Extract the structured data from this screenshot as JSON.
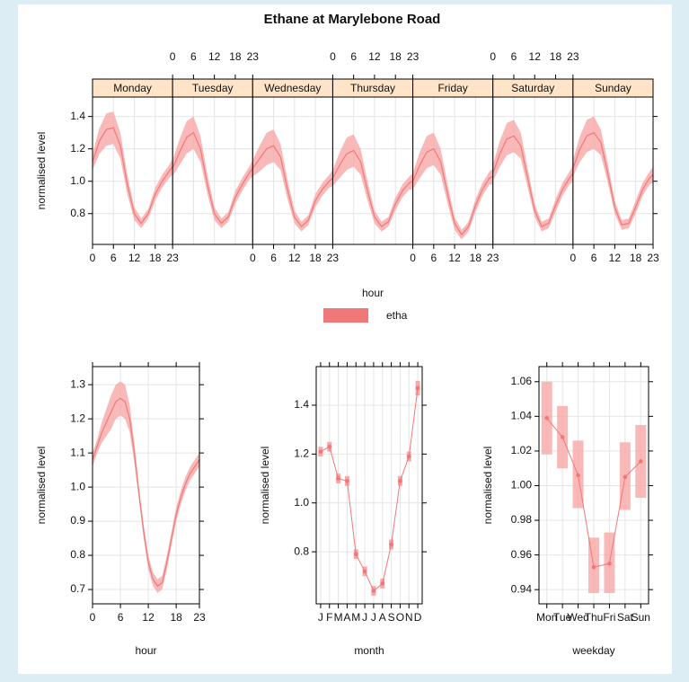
{
  "chart_data": [
    {
      "type": "line",
      "title": "Ethane at Marylebone Road",
      "xlabel": "hour",
      "ylabel": "normalised level",
      "series_name": "etha",
      "color": "#f07878",
      "band_color": "#f7a8a8",
      "xlim": [
        0,
        23
      ],
      "xticks": [
        0,
        6,
        12,
        18,
        23
      ],
      "ylim": [
        0.61,
        1.52
      ],
      "yticks": [
        0.8,
        {
          "value": 1,
          "label": "1.0"
        },
        1.2,
        1.4
      ],
      "grid": true,
      "x": [
        0,
        2,
        4,
        6,
        8,
        10,
        12,
        14,
        16,
        18,
        20,
        22,
        23
      ],
      "panels": [
        {
          "name": "Monday",
          "values": [
            1.12,
            1.25,
            1.32,
            1.33,
            1.22,
            0.98,
            0.8,
            0.74,
            0.8,
            0.92,
            1.0,
            1.06,
            1.09
          ],
          "lower": [
            1.07,
            1.17,
            1.22,
            1.23,
            1.14,
            0.92,
            0.76,
            0.71,
            0.77,
            0.88,
            0.96,
            1.02,
            1.04
          ],
          "upper": [
            1.17,
            1.33,
            1.42,
            1.43,
            1.3,
            1.04,
            0.84,
            0.77,
            0.83,
            0.96,
            1.04,
            1.1,
            1.14
          ]
        },
        {
          "name": "Tuesday",
          "values": [
            1.08,
            1.18,
            1.27,
            1.3,
            1.2,
            0.98,
            0.8,
            0.74,
            0.78,
            0.9,
            0.98,
            1.05,
            1.08
          ],
          "lower": [
            1.03,
            1.1,
            1.17,
            1.2,
            1.12,
            0.92,
            0.76,
            0.71,
            0.75,
            0.86,
            0.94,
            1.01,
            1.03
          ],
          "upper": [
            1.13,
            1.26,
            1.37,
            1.4,
            1.28,
            1.04,
            0.84,
            0.77,
            0.81,
            0.94,
            1.02,
            1.09,
            1.13
          ]
        },
        {
          "name": "Wednesday",
          "values": [
            1.08,
            1.14,
            1.2,
            1.22,
            1.15,
            0.95,
            0.78,
            0.72,
            0.76,
            0.88,
            0.95,
            1.0,
            1.02
          ],
          "lower": [
            1.03,
            1.06,
            1.1,
            1.12,
            1.07,
            0.89,
            0.74,
            0.69,
            0.73,
            0.84,
            0.91,
            0.96,
            0.97
          ],
          "upper": [
            1.13,
            1.22,
            1.3,
            1.32,
            1.23,
            1.01,
            0.82,
            0.75,
            0.79,
            0.92,
            0.99,
            1.04,
            1.07
          ]
        },
        {
          "name": "Thursday",
          "values": [
            1.02,
            1.1,
            1.17,
            1.19,
            1.12,
            0.94,
            0.78,
            0.72,
            0.75,
            0.86,
            0.94,
            0.99,
            1.0
          ],
          "lower": [
            0.97,
            1.02,
            1.07,
            1.09,
            1.04,
            0.88,
            0.74,
            0.69,
            0.72,
            0.82,
            0.9,
            0.95,
            0.95
          ],
          "upper": [
            1.07,
            1.18,
            1.27,
            1.29,
            1.2,
            1.0,
            0.82,
            0.75,
            0.78,
            0.9,
            0.98,
            1.03,
            1.05
          ]
        },
        {
          "name": "Friday",
          "values": [
            1.0,
            1.1,
            1.18,
            1.2,
            1.12,
            0.92,
            0.74,
            0.67,
            0.72,
            0.85,
            0.95,
            1.02,
            1.03
          ],
          "lower": [
            0.95,
            1.02,
            1.08,
            1.1,
            1.04,
            0.86,
            0.7,
            0.64,
            0.69,
            0.81,
            0.91,
            0.98,
            0.98
          ],
          "upper": [
            1.05,
            1.18,
            1.28,
            1.3,
            1.2,
            0.98,
            0.78,
            0.7,
            0.75,
            0.89,
            0.99,
            1.06,
            1.08
          ]
        },
        {
          "name": "Saturday",
          "values": [
            1.05,
            1.17,
            1.26,
            1.28,
            1.22,
            1.02,
            0.82,
            0.72,
            0.74,
            0.85,
            0.95,
            1.02,
            1.05
          ],
          "lower": [
            1.0,
            1.09,
            1.16,
            1.18,
            1.14,
            0.96,
            0.78,
            0.69,
            0.71,
            0.81,
            0.91,
            0.98,
            1.0
          ],
          "upper": [
            1.1,
            1.25,
            1.36,
            1.38,
            1.3,
            1.08,
            0.86,
            0.75,
            0.77,
            0.89,
            0.99,
            1.06,
            1.1
          ]
        },
        {
          "name": "Sunday",
          "values": [
            1.08,
            1.2,
            1.28,
            1.3,
            1.24,
            1.05,
            0.84,
            0.73,
            0.74,
            0.84,
            0.95,
            1.02,
            1.04
          ],
          "lower": [
            1.03,
            1.12,
            1.18,
            1.2,
            1.16,
            0.99,
            0.8,
            0.7,
            0.71,
            0.8,
            0.91,
            0.98,
            0.99
          ],
          "upper": [
            1.13,
            1.28,
            1.38,
            1.4,
            1.32,
            1.11,
            0.88,
            0.76,
            0.77,
            0.88,
            0.99,
            1.06,
            1.09
          ]
        }
      ]
    },
    {
      "type": "line",
      "xlabel": "hour",
      "ylabel": "normalised level",
      "color": "#f07878",
      "band_color": "#f7a8a8",
      "xlim": [
        0,
        23
      ],
      "xticks": [
        0,
        6,
        12,
        18,
        23
      ],
      "ylim": [
        0.658,
        1.353
      ],
      "yticks": [
        0.7,
        0.8,
        0.9,
        {
          "value": 1,
          "label": "1.0"
        },
        1.1,
        1.2,
        1.3
      ],
      "grid": true,
      "x": [
        0,
        1,
        2,
        3,
        4,
        5,
        6,
        7,
        8,
        9,
        10,
        11,
        12,
        13,
        14,
        15,
        16,
        17,
        18,
        19,
        20,
        21,
        22,
        23
      ],
      "values": [
        1.08,
        1.12,
        1.16,
        1.19,
        1.22,
        1.25,
        1.26,
        1.25,
        1.2,
        1.1,
        0.98,
        0.87,
        0.78,
        0.73,
        0.71,
        0.72,
        0.78,
        0.85,
        0.92,
        0.97,
        1.01,
        1.04,
        1.06,
        1.08
      ],
      "lower": [
        1.06,
        1.1,
        1.13,
        1.15,
        1.17,
        1.2,
        1.21,
        1.2,
        1.16,
        1.07,
        0.96,
        0.85,
        0.76,
        0.71,
        0.69,
        0.7,
        0.76,
        0.83,
        0.9,
        0.95,
        0.99,
        1.02,
        1.04,
        1.06
      ],
      "upper": [
        1.1,
        1.14,
        1.19,
        1.23,
        1.27,
        1.3,
        1.31,
        1.3,
        1.24,
        1.13,
        1.0,
        0.89,
        0.8,
        0.75,
        0.73,
        0.74,
        0.8,
        0.87,
        0.94,
        0.99,
        1.03,
        1.06,
        1.08,
        1.1
      ]
    },
    {
      "type": "errorline",
      "xlabel": "month",
      "ylabel": "normalised level",
      "color": "#f07878",
      "band_color": "#f7a8a8",
      "categories": [
        "J",
        "F",
        "M",
        "A",
        "M",
        "J",
        "J",
        "A",
        "S",
        "O",
        "N",
        "D"
      ],
      "ylim": [
        0.587,
        1.558
      ],
      "yticks": [
        0.8,
        {
          "value": 1,
          "label": "1.0"
        },
        1.2,
        1.4
      ],
      "grid": true,
      "values": [
        1.21,
        1.23,
        1.1,
        1.09,
        0.79,
        0.72,
        0.64,
        0.67,
        0.83,
        1.09,
        1.19,
        1.47
      ],
      "lower": [
        1.19,
        1.21,
        1.08,
        1.07,
        0.77,
        0.7,
        0.62,
        0.65,
        0.81,
        1.07,
        1.17,
        1.44
      ],
      "upper": [
        1.23,
        1.25,
        1.12,
        1.11,
        0.81,
        0.74,
        0.66,
        0.69,
        0.85,
        1.11,
        1.21,
        1.5
      ]
    },
    {
      "type": "errorbar",
      "xlabel": "weekday",
      "ylabel": "normalised level",
      "color": "#f07878",
      "band_color": "#f7a8a8",
      "categories": [
        "Mon",
        "Tue",
        "Wed",
        "Thu",
        "Fri",
        "Sat",
        "Sun"
      ],
      "ylim": [
        0.9318,
        1.0687
      ],
      "yticks": [
        0.94,
        0.96,
        0.98,
        {
          "value": 1,
          "label": "1.00"
        },
        1.02,
        1.04,
        1.06
      ],
      "grid": true,
      "values": [
        1.039,
        1.028,
        1.006,
        0.953,
        0.955,
        1.005,
        1.014
      ],
      "lower": [
        1.018,
        1.01,
        0.987,
        0.938,
        0.938,
        0.986,
        0.993
      ],
      "upper": [
        1.06,
        1.046,
        1.026,
        0.97,
        0.973,
        1.025,
        1.035
      ]
    }
  ]
}
